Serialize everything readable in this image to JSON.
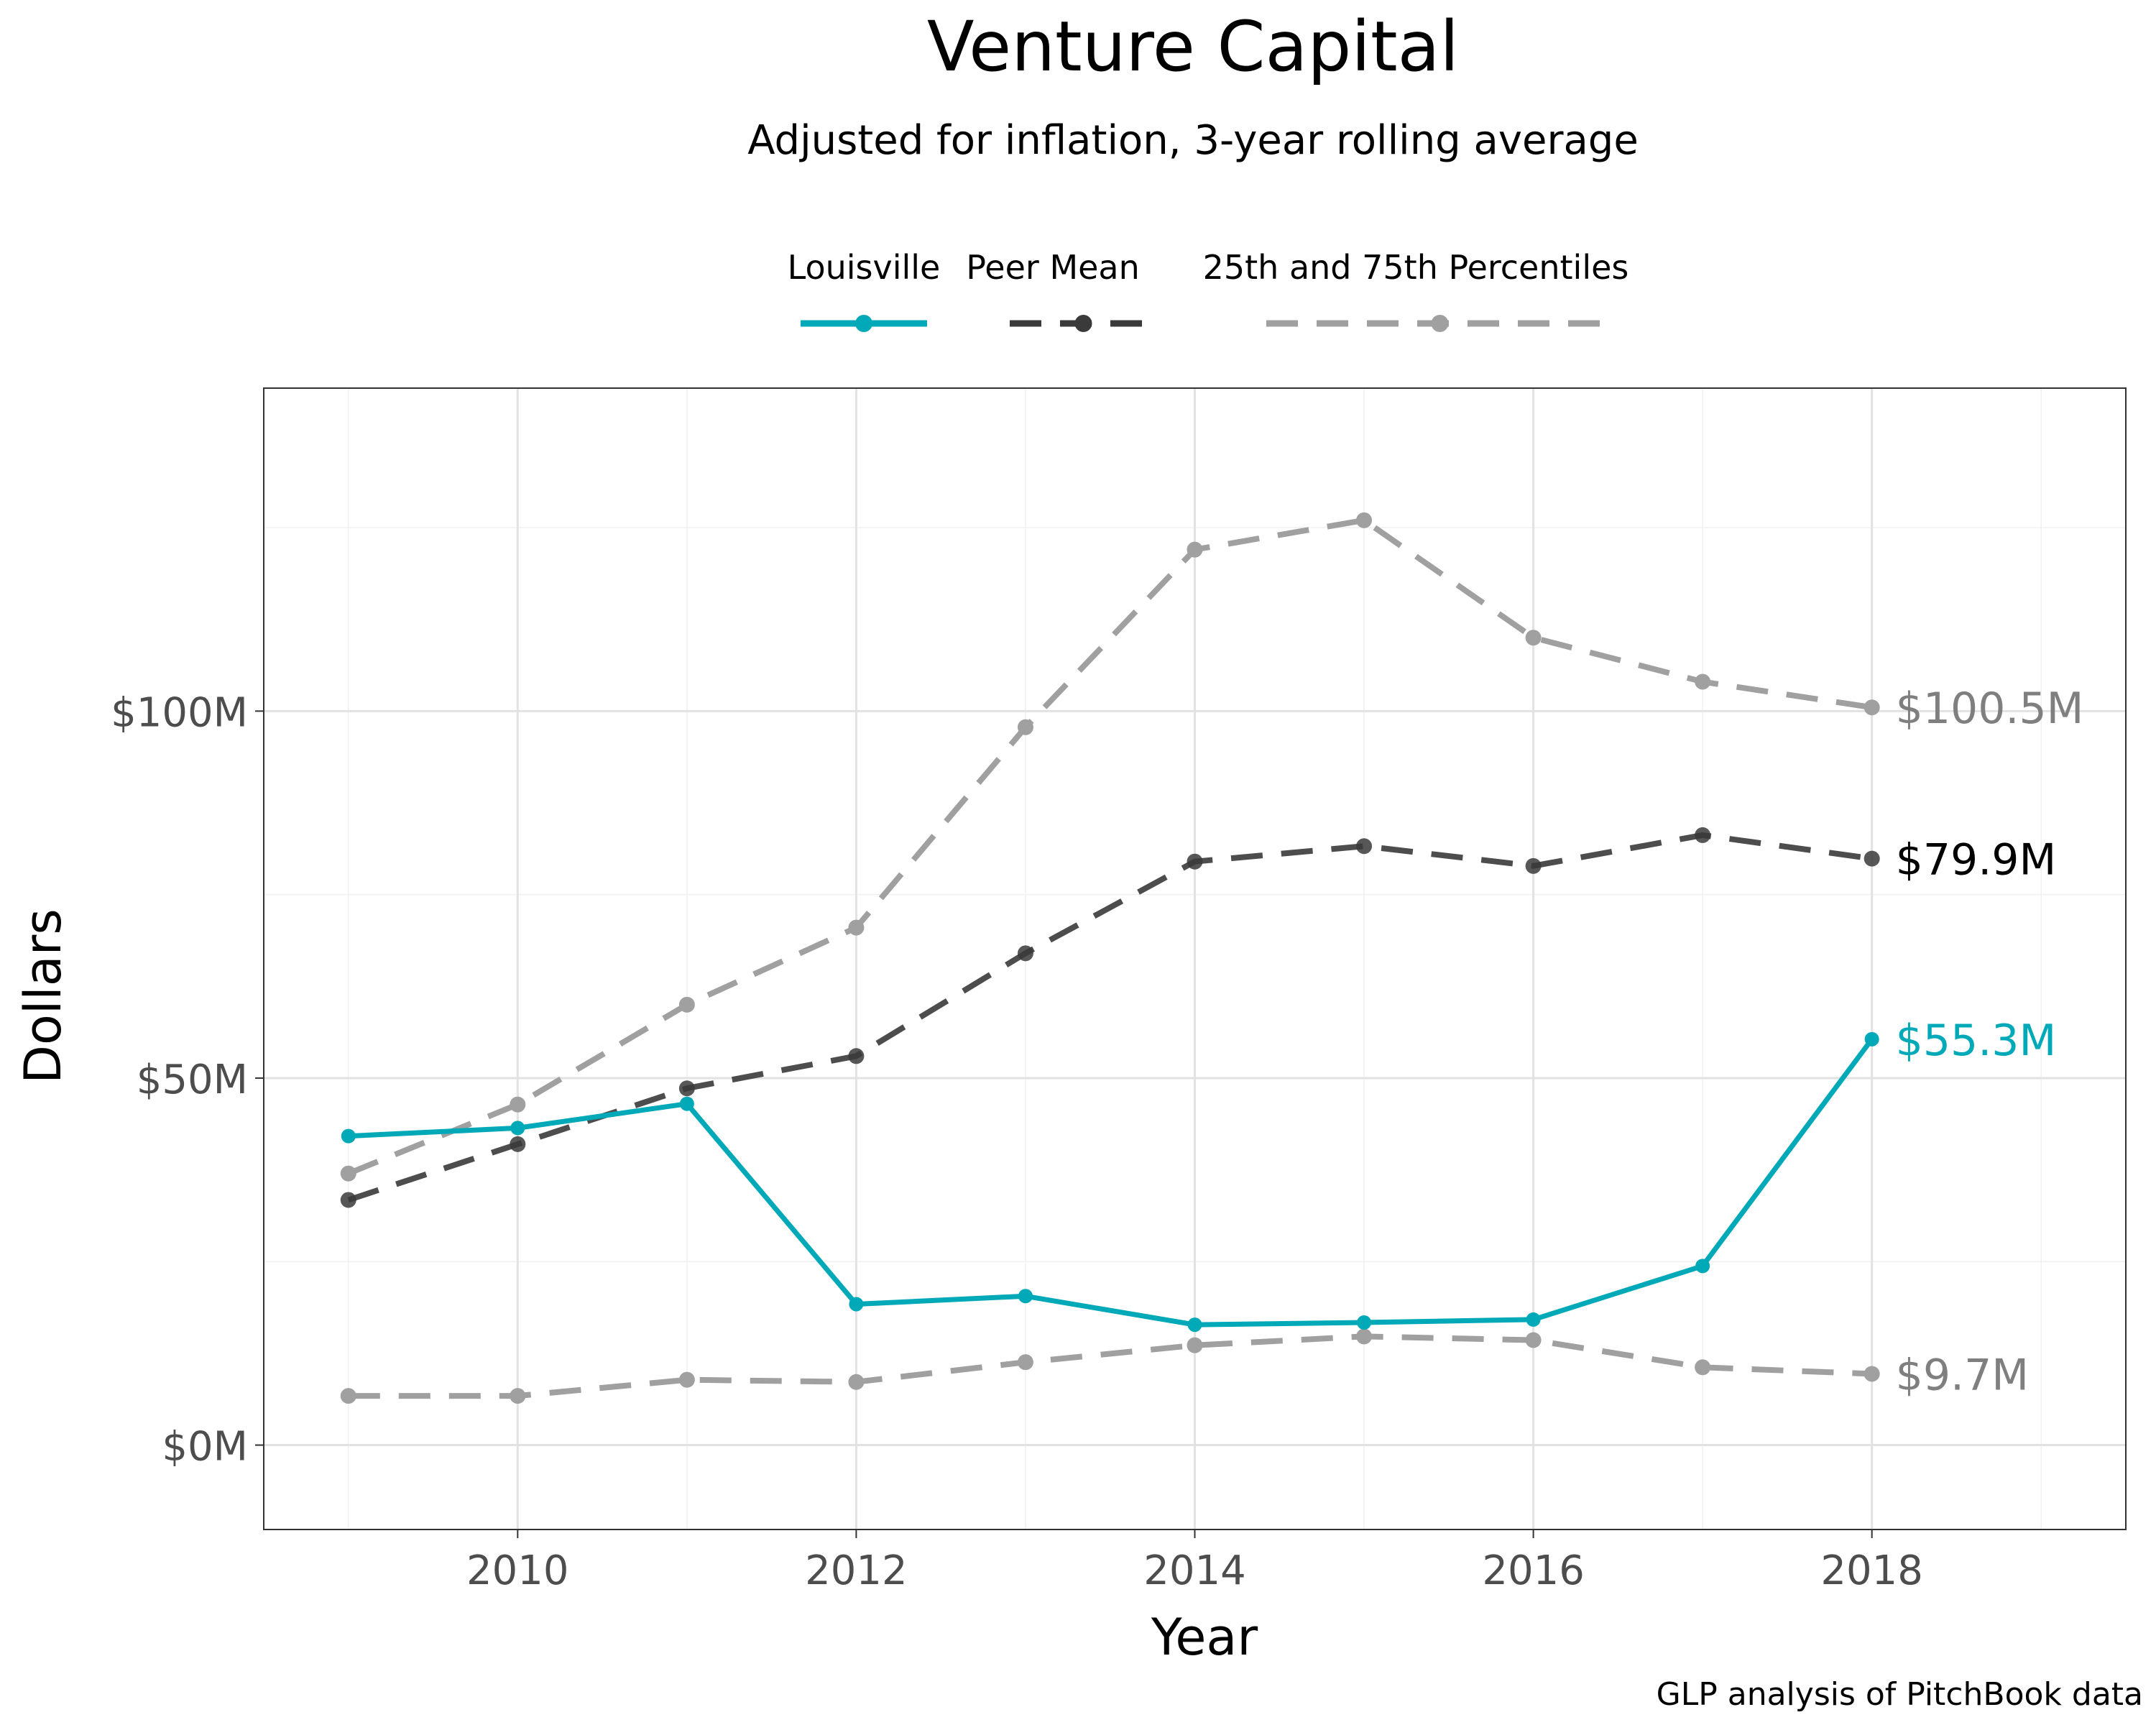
{
  "chart_data": {
    "type": "line",
    "title": "Venture Capital",
    "subtitle": "Adjusted for inflation, 3-year rolling average",
    "xlabel": "Year",
    "ylabel": "Dollars",
    "caption": "GLP analysis of PitchBook data",
    "x": [
      2009,
      2010,
      2011,
      2012,
      2013,
      2014,
      2015,
      2016,
      2017,
      2018
    ],
    "xlim": [
      2008.5,
      2019.5
    ],
    "ylim": [
      -11.5,
      144
    ],
    "x_ticks": [
      2010,
      2012,
      2014,
      2016,
      2018
    ],
    "x_tick_labels": [
      "2010",
      "2012",
      "2014",
      "2016",
      "2018"
    ],
    "y_ticks": [
      0,
      50,
      100
    ],
    "y_tick_labels": [
      "$0M",
      "$50M",
      "$100M"
    ],
    "y_minor_ticks": [
      25,
      75,
      125
    ],
    "x_minor_ticks": [
      2009,
      2011,
      2013,
      2015,
      2017,
      2019
    ],
    "grid": true,
    "legend_position": "top",
    "series": [
      {
        "name": "Louisville",
        "style": "solid",
        "color": "#00a9b7",
        "values": [
          42.1,
          43.2,
          46.5,
          19.2,
          20.3,
          16.4,
          16.7,
          17.1,
          24.4,
          55.3
        ],
        "end_label": "$55.3M"
      },
      {
        "name": "Peer Mean",
        "style": "dashed",
        "color": "#3a3a3a",
        "values": [
          33.4,
          41.0,
          48.6,
          53.0,
          67.0,
          79.5,
          81.6,
          78.9,
          83.1,
          79.9
        ],
        "end_label": "$79.9M"
      },
      {
        "name": "25th and 75th Percentiles",
        "style": "dashed",
        "color": "#a0a0a0",
        "values": [
          6.7,
          6.7,
          8.9,
          8.6,
          11.3,
          13.6,
          14.8,
          14.3,
          10.6,
          9.7
        ],
        "end_label": "$9.7M"
      },
      {
        "name": "",
        "style": "dashed",
        "color": "#a0a0a0",
        "values": [
          37.0,
          46.4,
          60.0,
          70.5,
          97.8,
          122.0,
          126.0,
          110.0,
          104.0,
          100.5
        ],
        "end_label": "$100.5M"
      }
    ]
  }
}
